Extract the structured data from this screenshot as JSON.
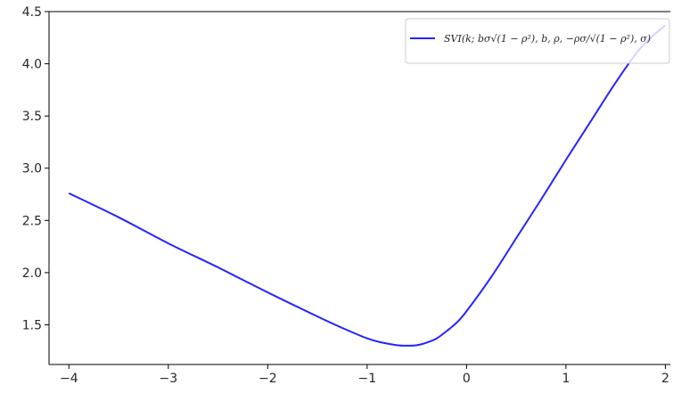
{
  "chart_data": {
    "type": "line",
    "title": "",
    "xlabel": "",
    "ylabel": "",
    "xlim": [
      -4.2,
      2.05
    ],
    "ylim": [
      1.12,
      4.5
    ],
    "x_ticks": [
      -4,
      -3,
      -2,
      -1,
      0,
      1,
      2
    ],
    "x_tick_labels": [
      "−4",
      "−3",
      "−2",
      "−1",
      "0",
      "1",
      "2"
    ],
    "y_ticks": [
      1.5,
      2.0,
      2.5,
      3.0,
      3.5,
      4.0,
      4.5
    ],
    "y_tick_labels": [
      "1.5",
      "2.0",
      "2.5",
      "3.0",
      "3.5",
      "4.0",
      "4.5"
    ],
    "grid": false,
    "legend_position": "top-right",
    "series": [
      {
        "name": "SVI(k; bσ√(1 − ρ²), b, ρ, −ρσ/√(1 − ρ²), σ)",
        "color": "#2424ff",
        "x": [
          -4.0,
          -3.5,
          -3.0,
          -2.5,
          -2.0,
          -1.5,
          -1.25,
          -1.0,
          -0.85,
          -0.7,
          -0.6,
          -0.5,
          -0.4,
          -0.3,
          -0.2,
          -0.1,
          0.0,
          0.25,
          0.5,
          0.75,
          1.0,
          1.25,
          1.5,
          1.75,
          2.0
        ],
        "values": [
          2.76,
          2.53,
          2.28,
          2.05,
          1.81,
          1.58,
          1.47,
          1.37,
          1.33,
          1.305,
          1.3,
          1.305,
          1.33,
          1.37,
          1.44,
          1.52,
          1.63,
          1.96,
          2.33,
          2.7,
          3.08,
          3.45,
          3.82,
          4.15,
          4.37
        ]
      }
    ]
  }
}
